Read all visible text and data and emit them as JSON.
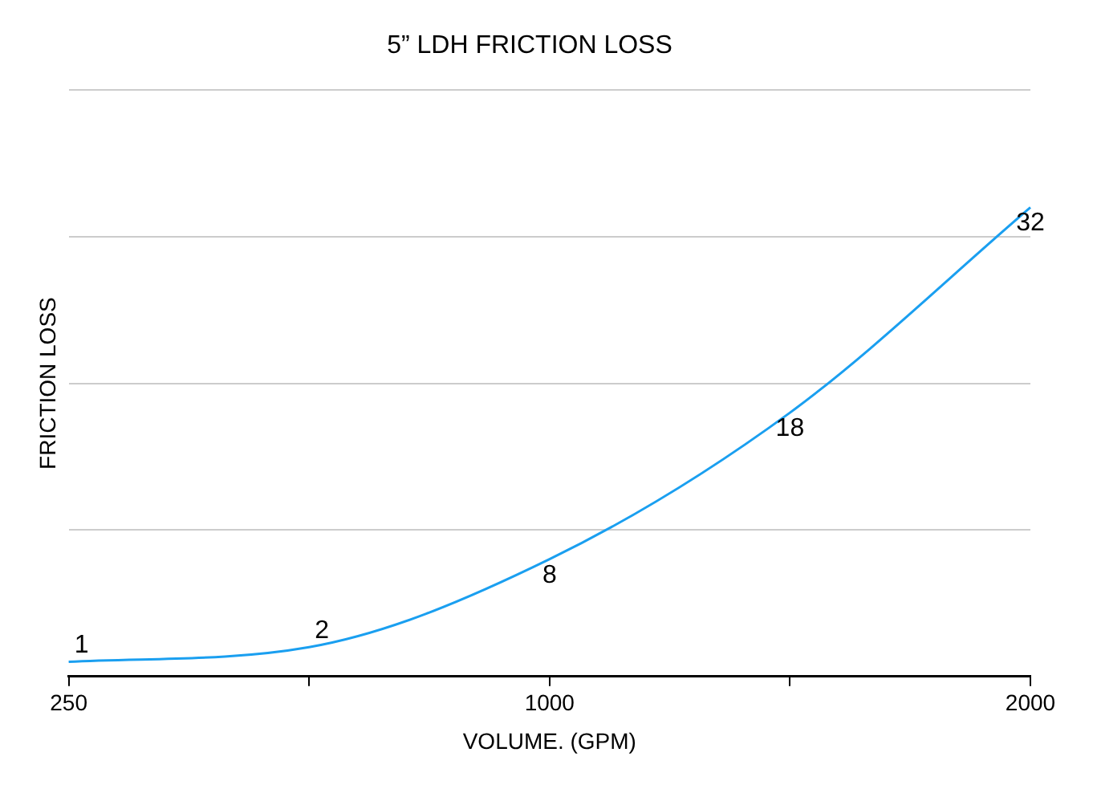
{
  "chart_data": {
    "type": "line",
    "title": "5” LDH FRICTION LOSS",
    "xlabel": "VOLUME. (GPM)",
    "ylabel": "FRICTION LOSS",
    "categories": [
      "250",
      null,
      "1000",
      null,
      "2000"
    ],
    "series": [
      {
        "color": "#1a9ff0",
        "values": [
          1,
          2,
          8,
          18,
          32
        ]
      }
    ],
    "ylim": [
      0,
      40
    ],
    "yticks": [
      {
        "value": 0,
        "label": null
      },
      {
        "value": 10,
        "label": null
      },
      {
        "value": 20,
        "label": null
      },
      {
        "value": 30,
        "label": null
      },
      {
        "value": 40,
        "label": null
      }
    ],
    "tick_labels": "x",
    "grid": "y",
    "data_labels": true,
    "legend": false,
    "marker": "none",
    "line_style": "solid"
  }
}
